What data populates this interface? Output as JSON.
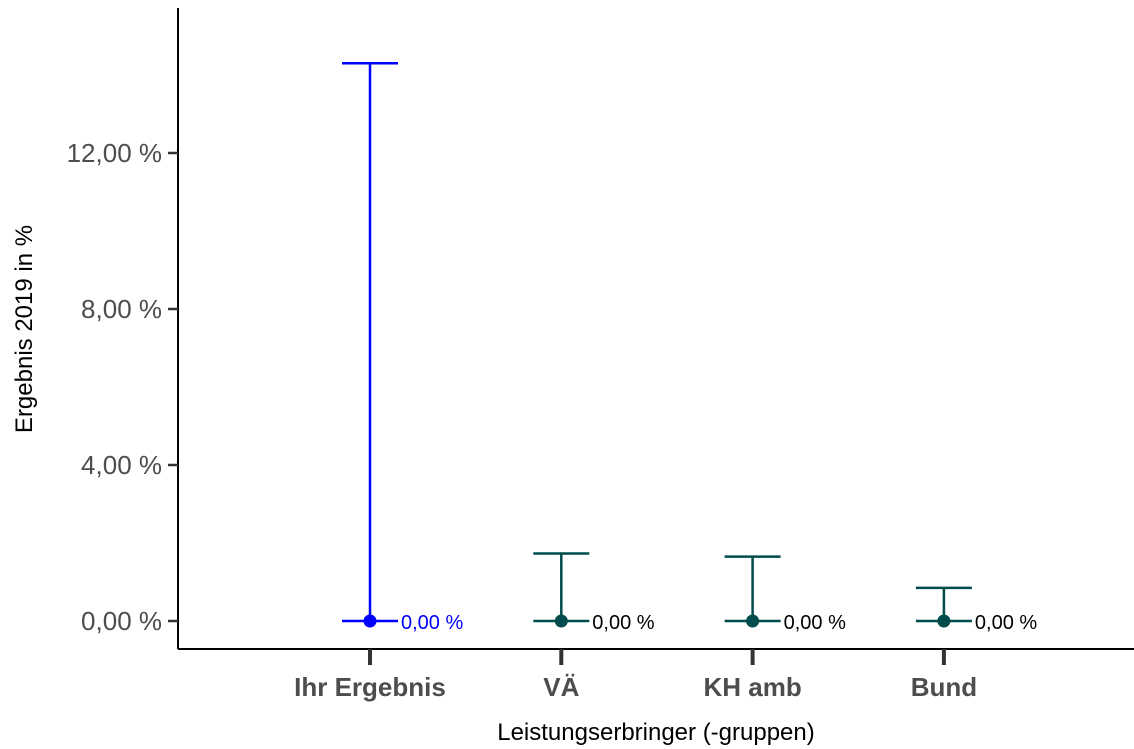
{
  "chart_data": {
    "type": "errorbar",
    "xlabel": "Leistungserbringer (-gruppen)",
    "ylabel": "Ergebnis 2019 in %",
    "ylim": [
      -0.7,
      15.8
    ],
    "yticks": [
      0,
      4,
      8,
      12
    ],
    "ytick_labels": [
      "0,00 %",
      "4,00 %",
      "8,00 %",
      "12,00 %"
    ],
    "grid": false,
    "legend": "none",
    "categories": [
      "Ihr Ergebnis",
      "VÄ",
      "KH amb",
      "Bund"
    ],
    "values": [
      0,
      0,
      0,
      0
    ],
    "upper": [
      14.3,
      1.73,
      1.65,
      0.85
    ],
    "lower": [
      0,
      0,
      0,
      0
    ],
    "data_labels": [
      "0,00 %",
      "0,00 %",
      "0,00 %",
      "0,00 %"
    ],
    "colors": [
      "#0000ff",
      "#004b4b",
      "#004b4b",
      "#004b4b"
    ]
  }
}
